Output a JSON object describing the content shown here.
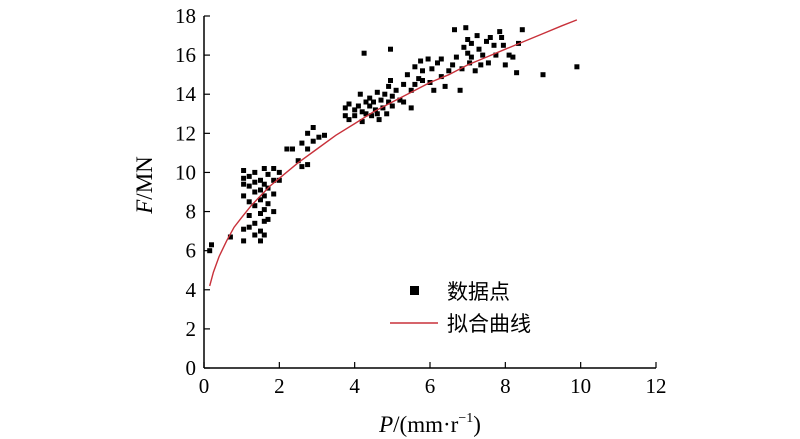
{
  "chart_data": {
    "type": "scatter",
    "title": "",
    "xlabel_italic": "P",
    "xlabel_rest": "/(mm·r",
    "xlabel_sup": "−1",
    "xlabel_close": ")",
    "ylabel_italic": "F",
    "ylabel_rest": "/MN",
    "xlim": [
      0,
      12
    ],
    "ylim": [
      0,
      18
    ],
    "xticks": [
      0,
      2,
      4,
      6,
      8,
      10,
      12
    ],
    "yticks": [
      0,
      2,
      4,
      6,
      8,
      10,
      12,
      14,
      16,
      18
    ],
    "grid": false,
    "legend": {
      "position": "center-right",
      "entries": [
        {
          "label": "数据点",
          "kind": "marker",
          "color": "#000000"
        },
        {
          "label": "拟合曲线",
          "kind": "line",
          "color": "#c8313a"
        }
      ]
    },
    "series": [
      {
        "label_ref": 0,
        "kind": "scatter",
        "color": "#000000",
        "points": [
          [
            0.2,
            6.3
          ],
          [
            0.15,
            6.0
          ],
          [
            0.7,
            6.7
          ],
          [
            1.05,
            10.1
          ],
          [
            1.05,
            9.7
          ],
          [
            1.05,
            9.4
          ],
          [
            1.05,
            8.8
          ],
          [
            1.05,
            7.1
          ],
          [
            1.05,
            6.5
          ],
          [
            1.2,
            9.8
          ],
          [
            1.2,
            9.3
          ],
          [
            1.2,
            8.5
          ],
          [
            1.2,
            7.8
          ],
          [
            1.2,
            7.2
          ],
          [
            1.35,
            10.0
          ],
          [
            1.35,
            9.5
          ],
          [
            1.35,
            9.0
          ],
          [
            1.35,
            8.3
          ],
          [
            1.35,
            7.4
          ],
          [
            1.35,
            6.8
          ],
          [
            1.5,
            9.6
          ],
          [
            1.5,
            9.1
          ],
          [
            1.5,
            8.6
          ],
          [
            1.5,
            7.9
          ],
          [
            1.5,
            7.0
          ],
          [
            1.5,
            6.5
          ],
          [
            1.6,
            10.2
          ],
          [
            1.6,
            9.4
          ],
          [
            1.6,
            8.8
          ],
          [
            1.6,
            8.1
          ],
          [
            1.6,
            7.5
          ],
          [
            1.6,
            6.8
          ],
          [
            1.7,
            9.9
          ],
          [
            1.7,
            9.2
          ],
          [
            1.7,
            8.4
          ],
          [
            1.7,
            7.6
          ],
          [
            1.85,
            10.2
          ],
          [
            1.85,
            9.6
          ],
          [
            1.85,
            8.9
          ],
          [
            1.85,
            8.0
          ],
          [
            2.0,
            10.0
          ],
          [
            2.0,
            9.6
          ],
          [
            2.2,
            11.2
          ],
          [
            2.35,
            11.2
          ],
          [
            2.5,
            10.6
          ],
          [
            2.6,
            10.3
          ],
          [
            2.6,
            11.5
          ],
          [
            2.75,
            12.0
          ],
          [
            2.75,
            11.2
          ],
          [
            2.75,
            10.4
          ],
          [
            2.9,
            12.3
          ],
          [
            2.9,
            11.6
          ],
          [
            3.05,
            11.8
          ],
          [
            3.2,
            11.9
          ],
          [
            3.75,
            13.3
          ],
          [
            3.75,
            12.9
          ],
          [
            3.85,
            13.5
          ],
          [
            3.85,
            12.7
          ],
          [
            4.0,
            13.2
          ],
          [
            4.0,
            12.9
          ],
          [
            4.1,
            13.4
          ],
          [
            4.15,
            14.0
          ],
          [
            4.2,
            13.1
          ],
          [
            4.2,
            12.6
          ],
          [
            4.25,
            16.1
          ],
          [
            4.3,
            13.6
          ],
          [
            4.3,
            13.0
          ],
          [
            4.4,
            13.8
          ],
          [
            4.4,
            13.4
          ],
          [
            4.45,
            12.9
          ],
          [
            4.5,
            13.6
          ],
          [
            4.55,
            13.2
          ],
          [
            4.6,
            14.1
          ],
          [
            4.6,
            13.0
          ],
          [
            4.65,
            12.7
          ],
          [
            4.7,
            13.7
          ],
          [
            4.75,
            13.3
          ],
          [
            4.8,
            14.0
          ],
          [
            4.85,
            13.0
          ],
          [
            4.9,
            13.6
          ],
          [
            4.9,
            14.4
          ],
          [
            4.95,
            14.7
          ],
          [
            4.95,
            16.3
          ],
          [
            5.0,
            13.4
          ],
          [
            5.0,
            13.9
          ],
          [
            5.1,
            14.2
          ],
          [
            5.2,
            13.7
          ],
          [
            5.3,
            14.5
          ],
          [
            5.3,
            13.6
          ],
          [
            5.4,
            15.0
          ],
          [
            5.5,
            14.2
          ],
          [
            5.5,
            13.3
          ],
          [
            5.6,
            14.5
          ],
          [
            5.6,
            15.4
          ],
          [
            5.7,
            14.8
          ],
          [
            5.75,
            15.7
          ],
          [
            5.8,
            15.2
          ],
          [
            5.8,
            14.7
          ],
          [
            5.95,
            15.8
          ],
          [
            6.0,
            14.6
          ],
          [
            6.05,
            15.3
          ],
          [
            6.1,
            14.2
          ],
          [
            6.2,
            15.6
          ],
          [
            6.3,
            14.9
          ],
          [
            6.3,
            15.8
          ],
          [
            6.4,
            14.4
          ],
          [
            6.5,
            15.2
          ],
          [
            6.6,
            15.5
          ],
          [
            6.65,
            17.3
          ],
          [
            6.7,
            15.9
          ],
          [
            6.8,
            14.2
          ],
          [
            6.85,
            15.3
          ],
          [
            6.9,
            16.4
          ],
          [
            6.95,
            17.4
          ],
          [
            7.0,
            16.8
          ],
          [
            7.0,
            16.1
          ],
          [
            7.05,
            15.6
          ],
          [
            7.1,
            16.6
          ],
          [
            7.1,
            15.9
          ],
          [
            7.2,
            15.2
          ],
          [
            7.25,
            17.0
          ],
          [
            7.3,
            16.3
          ],
          [
            7.35,
            15.5
          ],
          [
            7.4,
            16.0
          ],
          [
            7.5,
            16.7
          ],
          [
            7.55,
            15.6
          ],
          [
            7.6,
            16.9
          ],
          [
            7.7,
            16.5
          ],
          [
            7.75,
            16.0
          ],
          [
            7.85,
            17.2
          ],
          [
            7.9,
            16.9
          ],
          [
            7.95,
            16.5
          ],
          [
            8.0,
            15.5
          ],
          [
            8.1,
            16.0
          ],
          [
            8.2,
            15.9
          ],
          [
            8.3,
            15.1
          ],
          [
            8.35,
            16.6
          ],
          [
            8.45,
            17.3
          ],
          [
            9.0,
            15.0
          ],
          [
            9.9,
            15.4
          ]
        ]
      },
      {
        "label_ref": 1,
        "kind": "line",
        "color": "#c8313a",
        "x": [
          0.15,
          0.25,
          0.4,
          0.6,
          0.8,
          1.0,
          1.25,
          1.5,
          1.75,
          2.0,
          2.5,
          3.0,
          3.5,
          4.0,
          4.5,
          5.0,
          5.5,
          6.0,
          6.5,
          7.0,
          7.5,
          8.0,
          8.5,
          9.0,
          9.5,
          9.9
        ],
        "y": [
          4.2,
          4.9,
          5.7,
          6.5,
          7.2,
          7.7,
          8.3,
          8.8,
          9.3,
          9.7,
          10.5,
          11.2,
          11.9,
          12.5,
          13.1,
          13.6,
          14.1,
          14.6,
          15.0,
          15.5,
          15.9,
          16.3,
          16.7,
          17.1,
          17.5,
          17.8
        ]
      }
    ]
  }
}
